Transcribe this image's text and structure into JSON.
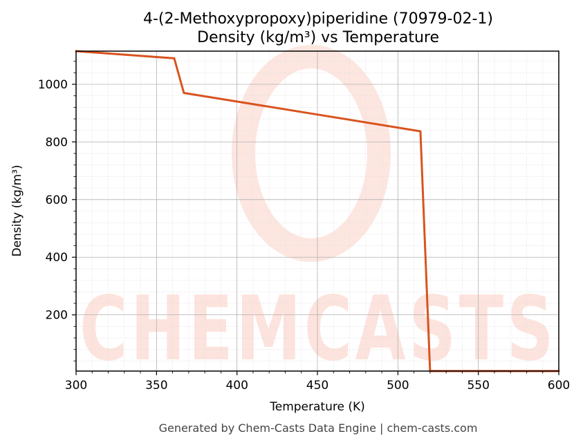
{
  "title_line1": "4-(2-Methoxypropoxy)piperidine (70979-02-1)",
  "title_line2": "Density (kg/m³) vs Temperature",
  "footer": "Generated by Chem-Casts Data Engine | chem-casts.com",
  "watermark": "CHEMCASTS",
  "colors": {
    "line": "#d9531e",
    "watermark": "#fde3dd",
    "grid_major": "#b0b0b0",
    "grid_minor": "#dddddd"
  },
  "chart_data": {
    "type": "line",
    "title": "4-(2-Methoxypropoxy)piperidine (70979-02-1) Density (kg/m³) vs Temperature",
    "xlabel": "Temperature (K)",
    "ylabel": "Density (kg/m³)",
    "xlim": [
      300,
      600
    ],
    "ylim": [
      5,
      1115
    ],
    "xticks": [
      300,
      350,
      400,
      450,
      500,
      550,
      600
    ],
    "yticks": [
      200,
      400,
      600,
      800,
      1000
    ],
    "grid": true,
    "series": [
      {
        "x": [
          300,
          361,
          367,
          514,
          520,
          600
        ],
        "y": [
          1115,
          1090,
          970,
          837,
          5,
          5
        ]
      }
    ]
  }
}
